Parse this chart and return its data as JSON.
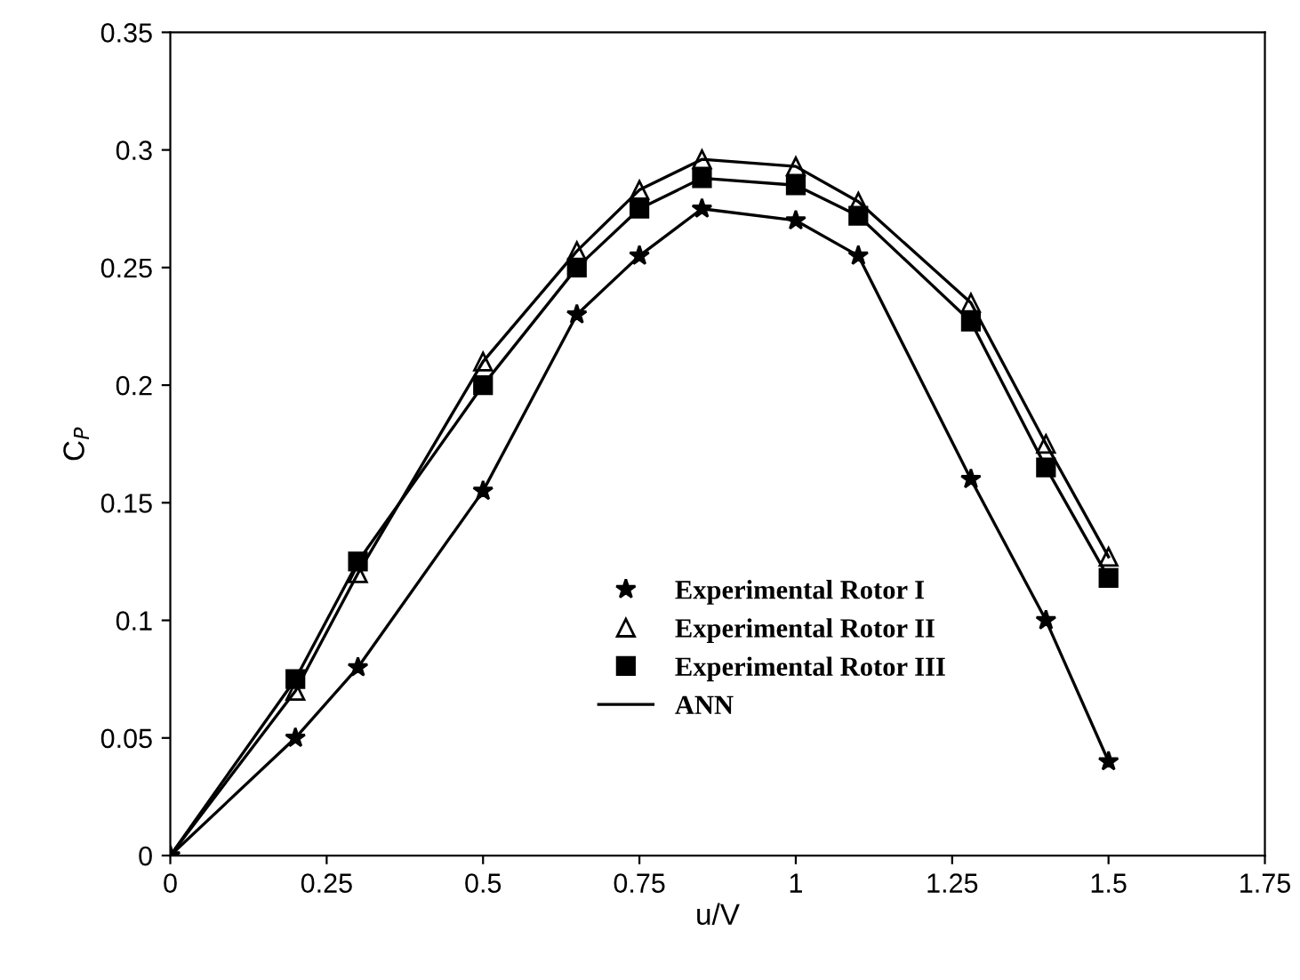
{
  "chart_data": {
    "type": "scatter",
    "xlabel": "u/V",
    "ylabel": "C$_{P}$",
    "xlim": [
      0,
      1.75
    ],
    "ylim": [
      0,
      0.35
    ],
    "xticks": [
      0,
      0.25,
      0.5,
      0.75,
      1,
      1.25,
      1.5,
      1.75
    ],
    "yticks": [
      0,
      0.05,
      0.1,
      0.15,
      0.2,
      0.25,
      0.3,
      0.35
    ],
    "grid": false,
    "legend": "center",
    "x": [
      0,
      0.2,
      0.3,
      0.5,
      0.65,
      0.75,
      0.85,
      1.0,
      1.1,
      1.28,
      1.4,
      1.5
    ],
    "series": [
      {
        "name": "Experimental Rotor I",
        "marker": "star",
        "color": "#000000",
        "values": [
          0,
          0.05,
          0.08,
          0.155,
          0.23,
          0.255,
          0.275,
          0.27,
          0.255,
          0.16,
          0.1,
          0.04
        ]
      },
      {
        "name": "Experimental Rotor II",
        "marker": "triangle",
        "color": "#000000",
        "values": [
          null,
          0.07,
          0.12,
          0.21,
          0.257,
          0.283,
          0.296,
          0.293,
          0.278,
          0.235,
          0.175,
          0.127
        ]
      },
      {
        "name": "Experimental Rotor III",
        "marker": "square",
        "color": "#000000",
        "values": [
          null,
          0.075,
          0.125,
          0.2,
          0.25,
          0.275,
          0.288,
          0.285,
          0.272,
          0.227,
          0.165,
          0.118
        ]
      },
      {
        "name": "ANN",
        "type": "line",
        "marker": "none",
        "line_style": "solid",
        "color": "#000000",
        "values": [
          0,
          0.05,
          0.08,
          0.155,
          0.23,
          0.255,
          0.275,
          0.27,
          0.255,
          0.16,
          0.1,
          0.04
        ]
      },
      {
        "type": "line",
        "marker": "none",
        "line_style": "solid",
        "color": "#000000",
        "values": [
          0,
          0.07,
          0.12,
          0.21,
          0.257,
          0.283,
          0.296,
          0.293,
          0.278,
          0.235,
          0.175,
          0.127
        ]
      },
      {
        "type": "line",
        "marker": "none",
        "line_style": "solid",
        "color": "#000000",
        "values": [
          0,
          0.075,
          0.125,
          0.2,
          0.25,
          0.275,
          0.288,
          0.285,
          0.272,
          0.227,
          0.165,
          0.118
        ]
      }
    ]
  }
}
